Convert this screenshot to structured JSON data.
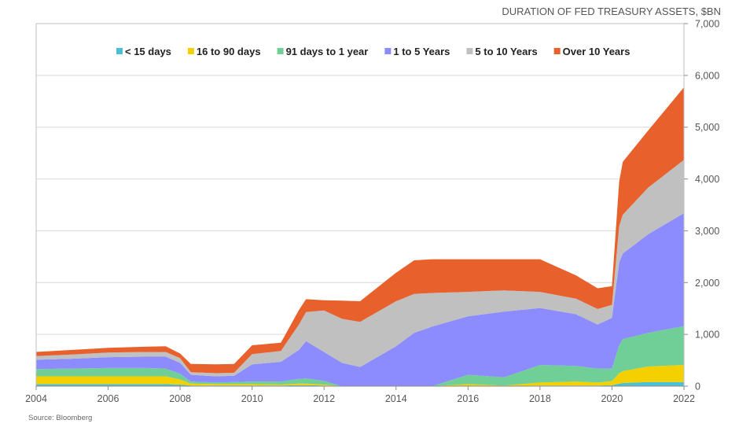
{
  "chart_data": {
    "type": "area",
    "stacked": true,
    "title": "DURATION OF FED TREASURY ASSETS, $BN",
    "source": "Source: Bloomberg",
    "xlim": [
      2004,
      2022
    ],
    "ylim": [
      0,
      7000
    ],
    "y_axis_position": "right",
    "legend_position": "top",
    "grid": true,
    "x_tick_values": [
      2004,
      2006,
      2008,
      2010,
      2012,
      2014,
      2016,
      2018,
      2020,
      2022
    ],
    "x_tick_labels": [
      "2004",
      "2006",
      "2008",
      "2010",
      "2012",
      "2014",
      "2016",
      "2018",
      "2020",
      "2022"
    ],
    "y_tick_values": [
      0,
      1000,
      2000,
      3000,
      4000,
      5000,
      6000,
      7000
    ],
    "y_tick_labels": [
      "0",
      "1,000",
      "2,000",
      "3,000",
      "4,000",
      "5,000",
      "6,000",
      "7,000"
    ],
    "x": [
      2004,
      2005,
      2006,
      2007,
      2007.6,
      2008,
      2008.3,
      2009,
      2009.5,
      2010,
      2010.8,
      2011.3,
      2011.5,
      2012,
      2012.5,
      2013,
      2014,
      2014.5,
      2015,
      2016,
      2017,
      2018,
      2019,
      2019.6,
      2020,
      2020.2,
      2020.3,
      2021,
      2022
    ],
    "series": [
      {
        "name": "< 15 days",
        "color": "#4bbfd3",
        "values": [
          40,
          40,
          40,
          40,
          40,
          30,
          10,
          10,
          10,
          10,
          10,
          20,
          20,
          10,
          0,
          0,
          0,
          0,
          0,
          0,
          0,
          10,
          10,
          10,
          20,
          50,
          60,
          80,
          80
        ]
      },
      {
        "name": "16 to 90 days",
        "color": "#f5d000",
        "values": [
          150,
          150,
          150,
          150,
          150,
          100,
          40,
          30,
          30,
          30,
          20,
          30,
          30,
          20,
          0,
          0,
          0,
          0,
          0,
          40,
          10,
          60,
          80,
          60,
          80,
          200,
          230,
          300,
          330
        ]
      },
      {
        "name": "91 days to 1 year",
        "color": "#6fcf97",
        "values": [
          140,
          150,
          160,
          160,
          150,
          110,
          40,
          30,
          40,
          50,
          60,
          90,
          100,
          70,
          0,
          0,
          0,
          0,
          0,
          180,
          160,
          340,
          300,
          270,
          240,
          540,
          620,
          650,
          750
        ]
      },
      {
        "name": "1 to 5 Years",
        "color": "#8c8cff",
        "values": [
          180,
          190,
          210,
          220,
          230,
          210,
          130,
          120,
          120,
          330,
          380,
          560,
          720,
          560,
          450,
          370,
          770,
          1030,
          1150,
          1130,
          1270,
          1100,
          1000,
          850,
          980,
          1600,
          1650,
          1900,
          2180
        ]
      },
      {
        "name": "5 to 10 Years",
        "color": "#c0c0c0",
        "values": [
          70,
          80,
          90,
          90,
          90,
          90,
          50,
          60,
          60,
          200,
          210,
          490,
          560,
          800,
          850,
          870,
          870,
          750,
          650,
          470,
          410,
          310,
          300,
          300,
          250,
          700,
          750,
          900,
          1030
        ]
      },
      {
        "name": "Over 10 Years",
        "color": "#e8602c",
        "values": [
          80,
          90,
          90,
          100,
          110,
          90,
          160,
          170,
          170,
          170,
          160,
          280,
          250,
          200,
          350,
          400,
          550,
          650,
          650,
          630,
          600,
          630,
          450,
          400,
          360,
          860,
          1020,
          1100,
          1400
        ]
      }
    ]
  }
}
